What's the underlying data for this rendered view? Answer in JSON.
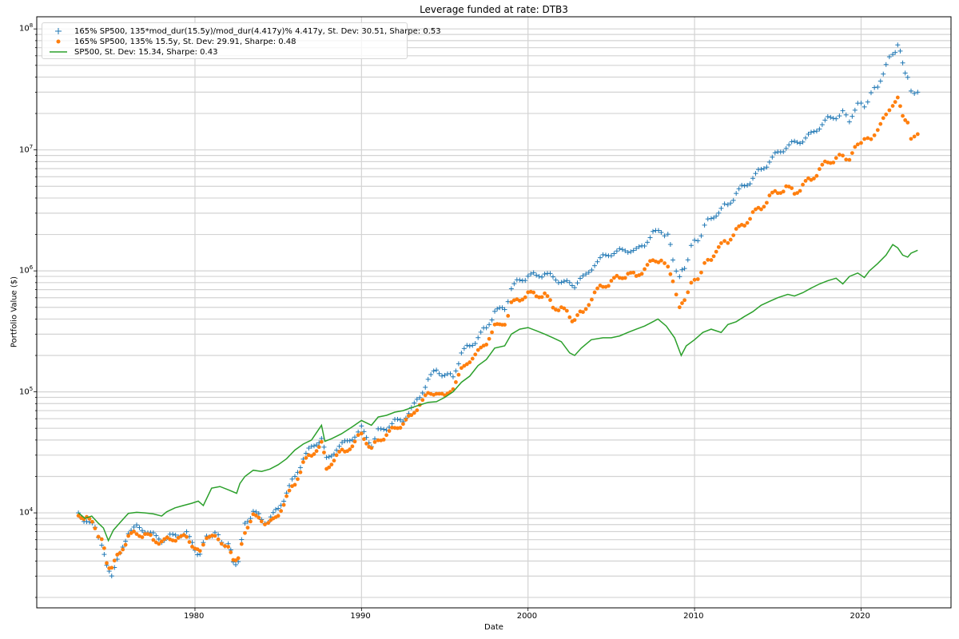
{
  "chart_data": {
    "type": "scatter",
    "title": "Leverage funded at rate: DTB3",
    "xlabel": "Date",
    "ylabel": "Portfolio Value ($)",
    "yscale": "log",
    "xlim": [
      1970.5,
      2025.4
    ],
    "ylim": [
      1640,
      126000000
    ],
    "grid": true,
    "legend_position": "upper left",
    "x_ticks": [
      1980,
      1990,
      2000,
      2010,
      2020
    ],
    "y_ticks": [
      "10^4",
      "10^5",
      "10^6",
      "10^7",
      "10^8"
    ],
    "series": [
      {
        "name": "165% SP500, 135*mod_dur(15.5y)/mod_dur(4.417y)% 4.417y, St. Dev: 30.51, Sharpe: 0.53",
        "marker": "+",
        "color": "#1f77b4",
        "x": [
          1973.0,
          1973.5,
          1974.0,
          1974.4,
          1974.7,
          1975.0,
          1975.5,
          1976.0,
          1976.5,
          1977.0,
          1977.5,
          1978.0,
          1978.5,
          1979.0,
          1979.5,
          1980.0,
          1980.3,
          1980.7,
          1981.2,
          1981.6,
          1982.0,
          1982.3,
          1982.6,
          1983.0,
          1983.5,
          1984.0,
          1984.4,
          1985.0,
          1985.5,
          1986.0,
          1986.5,
          1987.0,
          1987.6,
          1987.9,
          1988.5,
          1989.0,
          1989.6,
          1990.0,
          1990.6,
          1991.0,
          1991.5,
          1992.0,
          1992.5,
          1993.0,
          1993.5,
          1994.0,
          1994.5,
          1995.0,
          1995.5,
          1996.0,
          1996.5,
          1997.0,
          1997.5,
          1998.0,
          1998.6,
          1999.0,
          1999.5,
          2000.0,
          2000.5,
          2001.0,
          2001.5,
          2002.0,
          2002.5,
          2002.8,
          2003.3,
          2004.0,
          2004.5,
          2005.0,
          2005.5,
          2006.0,
          2006.5,
          2007.0,
          2007.5,
          2008.0,
          2008.4,
          2008.7,
          2009.1,
          2009.4,
          2009.8,
          2010.2,
          2010.6,
          2011.0,
          2011.6,
          2012.0,
          2012.5,
          2013.0,
          2013.5,
          2014.0,
          2014.5,
          2015.0,
          2015.5,
          2016.0,
          2016.5,
          2017.0,
          2017.5,
          2018.0,
          2018.5,
          2018.9,
          2019.3,
          2019.8,
          2020.2,
          2020.6,
          2021.0,
          2021.5,
          2021.9,
          2022.2,
          2022.5,
          2022.8,
          2023.0,
          2023.4
        ],
        "values": [
          10000,
          8500,
          7500,
          5500,
          3600,
          3100,
          4500,
          7000,
          7600,
          7200,
          6500,
          6000,
          6300,
          6700,
          6600,
          5200,
          4300,
          6800,
          6500,
          6000,
          5300,
          4100,
          3800,
          8500,
          10000,
          9000,
          8200,
          11000,
          14500,
          20000,
          28000,
          35000,
          42000,
          28000,
          34000,
          38000,
          44000,
          50000,
          37000,
          47000,
          51000,
          56000,
          60000,
          70000,
          95000,
          120000,
          160000,
          130000,
          140000,
          200000,
          250000,
          270000,
          350000,
          450000,
          490000,
          700000,
          850000,
          900000,
          920000,
          950000,
          880000,
          820000,
          780000,
          750000,
          880000,
          1150000,
          1300000,
          1400000,
          1450000,
          1500000,
          1450000,
          1700000,
          2000000,
          2200000,
          1900000,
          1300000,
          850000,
          1100000,
          1550000,
          1850000,
          2300000,
          2800000,
          3200000,
          3600000,
          4300000,
          5100000,
          5800000,
          6900000,
          8000000,
          9500000,
          10500000,
          11500000,
          12000000,
          13500000,
          15500000,
          18000000,
          19000000,
          20000000,
          18000000,
          23000000,
          24000000,
          28000000,
          35000000,
          48000000,
          65000000,
          70000000,
          55000000,
          38000000,
          32000000,
          30000000
        ]
      },
      {
        "name": "165% SP500, 135% 15.5y, St. Dev: 29.91, Sharpe: 0.48",
        "marker": "o",
        "color": "#ff7f0e",
        "x": [
          1973.0,
          1973.5,
          1974.0,
          1974.4,
          1974.7,
          1975.0,
          1975.5,
          1976.0,
          1976.5,
          1977.0,
          1977.5,
          1978.0,
          1978.5,
          1979.0,
          1979.5,
          1980.0,
          1980.3,
          1980.7,
          1981.2,
          1981.6,
          1982.0,
          1982.3,
          1982.6,
          1983.0,
          1983.5,
          1984.0,
          1984.4,
          1985.0,
          1985.5,
          1986.0,
          1986.5,
          1987.0,
          1987.6,
          1987.9,
          1988.5,
          1989.0,
          1989.6,
          1990.0,
          1990.6,
          1991.0,
          1991.5,
          1992.0,
          1992.5,
          1993.0,
          1993.5,
          1994.0,
          1994.5,
          1995.0,
          1995.5,
          1996.0,
          1996.5,
          1997.0,
          1997.5,
          1998.0,
          1998.6,
          1999.0,
          1999.5,
          2000.0,
          2000.5,
          2001.0,
          2001.5,
          2002.0,
          2002.5,
          2002.8,
          2003.3,
          2004.0,
          2004.5,
          2005.0,
          2005.5,
          2006.0,
          2006.5,
          2007.0,
          2007.5,
          2008.0,
          2008.4,
          2008.7,
          2009.1,
          2009.4,
          2009.8,
          2010.2,
          2010.6,
          2011.0,
          2011.6,
          2012.0,
          2012.5,
          2013.0,
          2013.5,
          2014.0,
          2014.5,
          2015.0,
          2015.5,
          2016.0,
          2016.5,
          2017.0,
          2017.5,
          2018.0,
          2018.5,
          2018.9,
          2019.3,
          2019.8,
          2020.2,
          2020.6,
          2021.0,
          2021.5,
          2021.9,
          2022.2,
          2022.5,
          2022.8,
          2023.0,
          2023.4
        ],
        "values": [
          10000,
          8800,
          7800,
          5800,
          4000,
          3400,
          4800,
          6300,
          6800,
          6600,
          6000,
          5800,
          6000,
          6300,
          6200,
          5200,
          4700,
          6400,
          6200,
          5800,
          5000,
          4300,
          4000,
          7200,
          9200,
          9000,
          7800,
          10000,
          13000,
          18000,
          25000,
          31000,
          37000,
          24000,
          29000,
          33000,
          38000,
          46000,
          34000,
          40000,
          44000,
          50000,
          55000,
          63000,
          80000,
          95000,
          100000,
          90000,
          110000,
          150000,
          185000,
          210000,
          260000,
          340000,
          380000,
          520000,
          600000,
          630000,
          650000,
          620000,
          520000,
          480000,
          430000,
          380000,
          470000,
          650000,
          750000,
          820000,
          880000,
          950000,
          900000,
          1050000,
          1200000,
          1250000,
          1050000,
          850000,
          480000,
          600000,
          760000,
          900000,
          1100000,
          1300000,
          1600000,
          1800000,
          2100000,
          2500000,
          2900000,
          3400000,
          4000000,
          4600000,
          4800000,
          4500000,
          5000000,
          5800000,
          6800000,
          8000000,
          8500000,
          9000000,
          8300000,
          11000000,
          12500000,
          12000000,
          15000000,
          19000000,
          24000000,
          26000000,
          20000000,
          16000000,
          13000000,
          13500000
        ]
      },
      {
        "name": "SP500, St. Dev: 15.34, Sharpe: 0.43",
        "marker": "line",
        "color": "#2ca02c",
        "x": [
          1973.0,
          1973.4,
          1973.8,
          1974.2,
          1974.5,
          1974.8,
          1975.1,
          1975.5,
          1976.0,
          1976.5,
          1977.0,
          1977.5,
          1978.0,
          1978.3,
          1978.8,
          1979.3,
          1979.8,
          1980.2,
          1980.5,
          1981.0,
          1981.5,
          1982.0,
          1982.5,
          1982.7,
          1983.0,
          1983.5,
          1984.0,
          1984.5,
          1985.0,
          1985.5,
          1986.0,
          1986.5,
          1987.0,
          1987.6,
          1987.8,
          1988.2,
          1988.8,
          1989.5,
          1990.0,
          1990.6,
          1991.0,
          1991.5,
          1992.0,
          1992.5,
          1993.0,
          1993.5,
          1994.0,
          1994.5,
          1995.0,
          1995.5,
          1996.0,
          1996.5,
          1997.0,
          1997.5,
          1998.0,
          1998.6,
          1999.0,
          1999.5,
          2000.0,
          2000.5,
          2001.0,
          2001.5,
          2002.0,
          2002.5,
          2002.8,
          2003.2,
          2003.8,
          2004.5,
          2005.0,
          2005.5,
          2006.0,
          2006.5,
          2007.0,
          2007.5,
          2007.8,
          2008.3,
          2008.8,
          2009.2,
          2009.5,
          2010.0,
          2010.5,
          2011.0,
          2011.6,
          2012.0,
          2012.5,
          2013.0,
          2013.5,
          2014.0,
          2014.5,
          2015.0,
          2015.6,
          2016.0,
          2016.5,
          2017.0,
          2017.5,
          2018.0,
          2018.5,
          2018.9,
          2019.3,
          2019.8,
          2020.2,
          2020.5,
          2021.0,
          2021.5,
          2021.9,
          2022.2,
          2022.5,
          2022.8,
          2023.0,
          2023.4
        ],
        "values": [
          10000,
          9000,
          9400,
          8200,
          7500,
          5900,
          7200,
          8300,
          9900,
          10100,
          10000,
          9800,
          9400,
          10200,
          11000,
          11500,
          12000,
          12500,
          11500,
          16000,
          16500,
          15500,
          14500,
          17500,
          20000,
          22500,
          22000,
          23000,
          25000,
          28000,
          33000,
          37000,
          40000,
          53000,
          39000,
          41000,
          45000,
          52000,
          58000,
          53000,
          62000,
          64000,
          68000,
          70000,
          74000,
          78000,
          82000,
          83000,
          90000,
          100000,
          120000,
          135000,
          165000,
          185000,
          230000,
          240000,
          300000,
          330000,
          340000,
          320000,
          300000,
          280000,
          260000,
          210000,
          200000,
          230000,
          270000,
          280000,
          280000,
          290000,
          310000,
          330000,
          350000,
          380000,
          400000,
          350000,
          280000,
          200000,
          240000,
          270000,
          310000,
          330000,
          310000,
          360000,
          380000,
          420000,
          460000,
          520000,
          560000,
          600000,
          640000,
          620000,
          660000,
          720000,
          780000,
          830000,
          870000,
          780000,
          900000,
          960000,
          880000,
          1000000,
          1150000,
          1350000,
          1650000,
          1550000,
          1350000,
          1300000,
          1400000,
          1480000
        ]
      }
    ]
  },
  "legend": {
    "entries": [
      {
        "label": "165% SP500, 135*mod_dur(15.5y)/mod_dur(4.417y)% 4.417y, St. Dev: 30.51, Sharpe: 0.53",
        "marker": "+"
      },
      {
        "label": "165% SP500, 135% 15.5y, St. Dev: 29.91, Sharpe: 0.48",
        "marker": "dot"
      },
      {
        "label": "SP500, St. Dev: 15.34, Sharpe: 0.43",
        "marker": "line"
      }
    ]
  },
  "x_tick_labels": [
    "1980",
    "1990",
    "2000",
    "2010",
    "2020"
  ],
  "y_tick_labels": [
    {
      "base": "10",
      "exp": "8"
    },
    {
      "base": "10",
      "exp": "7"
    },
    {
      "base": "10",
      "exp": "6"
    },
    {
      "base": "10",
      "exp": "5"
    },
    {
      "base": "10",
      "exp": "4"
    }
  ]
}
